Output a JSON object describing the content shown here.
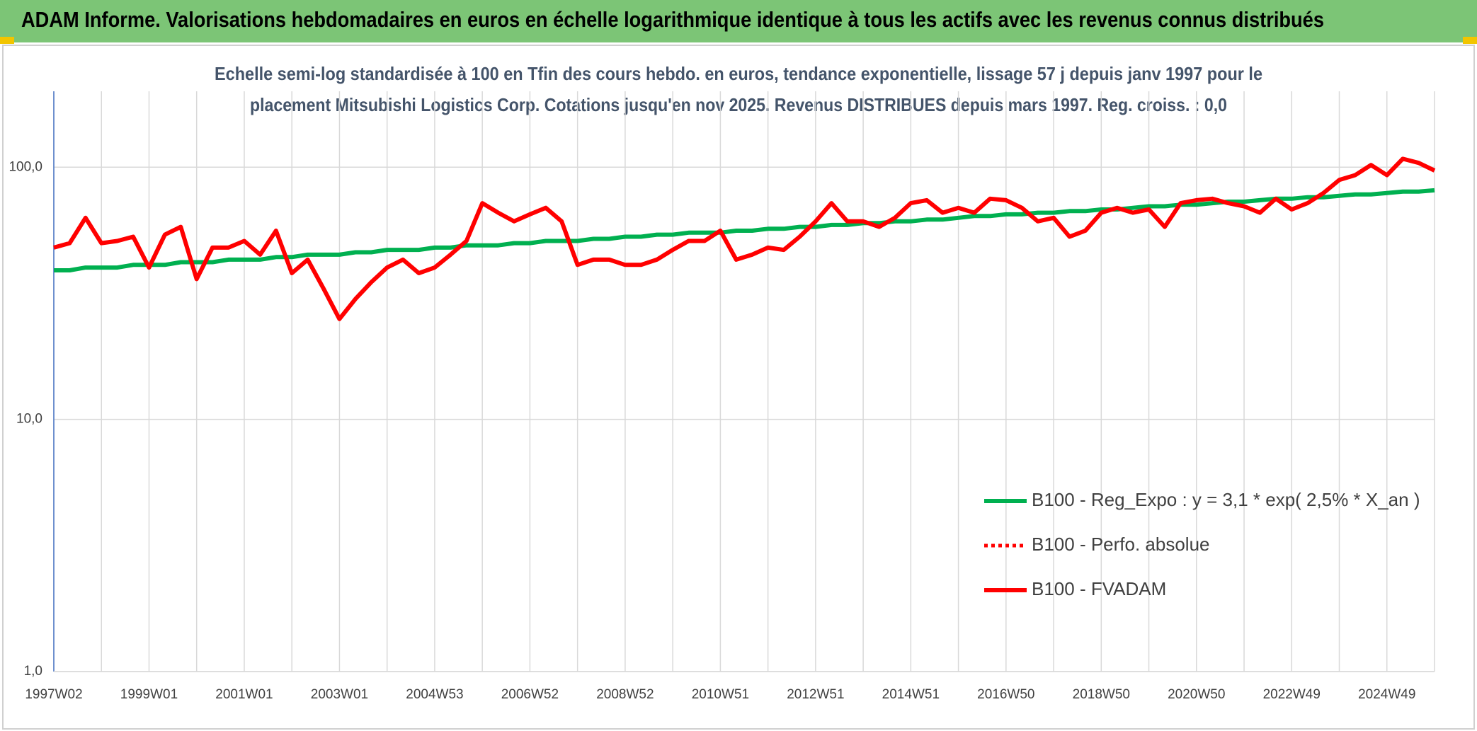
{
  "header": {
    "title": "ADAM Informe. Valorisations hebdomadaires en euros en échelle logarithmique identique à tous les actifs avec les revenus connus distribués"
  },
  "chart_data": {
    "type": "line",
    "title": [
      "Echelle semi-log standardisée à 100 en Tfin des cours hebdo. en euros, tendance exponentielle, lissage 57 j depuis janv 1997 pour le",
      "placement Mitsubishi Logistics Corp. Cotations jusqu'en nov 2025. Revenus DISTRIBUES depuis mars 1997. Reg. croiss. : 0,0"
    ],
    "categories": [
      "1997W02",
      null,
      null,
      null,
      null,
      null,
      "1999W01",
      null,
      null,
      null,
      null,
      null,
      "2001W01",
      null,
      null,
      null,
      null,
      null,
      "2003W01",
      null,
      null,
      null,
      null,
      null,
      "2004W53",
      null,
      null,
      null,
      null,
      null,
      "2006W52",
      null,
      null,
      null,
      null,
      null,
      "2008W52",
      null,
      null,
      null,
      null,
      null,
      "2010W51",
      null,
      null,
      null,
      null,
      null,
      "2012W51",
      null,
      null,
      null,
      null,
      null,
      "2014W51",
      null,
      null,
      null,
      null,
      null,
      "2016W50",
      null,
      null,
      null,
      null,
      null,
      "2018W50",
      null,
      null,
      null,
      null,
      null,
      "2020W50",
      null,
      null,
      null,
      null,
      null,
      "2022W49",
      null,
      null,
      null,
      null,
      null,
      "2024W49",
      null,
      null,
      null
    ],
    "series": [
      {
        "name": "B100 - Reg_Expo : y = 3,1 * exp( 2,5% *  X_an )",
        "color": "#00b050",
        "style": "solid",
        "values": [
          39,
          39,
          40,
          40,
          40,
          41,
          41,
          41,
          42,
          42,
          42,
          43,
          43,
          43,
          44,
          44,
          45,
          45,
          45,
          46,
          46,
          47,
          47,
          47,
          48,
          48,
          49,
          49,
          49,
          50,
          50,
          51,
          51,
          51,
          52,
          52,
          53,
          53,
          54,
          54,
          55,
          55,
          55,
          56,
          56,
          57,
          57,
          58,
          58,
          59,
          59,
          60,
          60,
          61,
          61,
          62,
          62,
          63,
          64,
          64,
          65,
          65,
          66,
          66,
          67,
          67,
          68,
          68,
          69,
          70,
          70,
          71,
          71,
          72,
          73,
          73,
          74,
          75,
          75,
          76,
          76,
          77,
          78,
          78,
          79,
          80,
          80,
          81
        ]
      },
      {
        "name": "B100 - Perfo. absolue",
        "color": "#ff0000",
        "style": "dotted",
        "values": [
          48,
          50,
          63,
          50,
          51,
          53,
          40,
          54,
          58,
          36,
          48,
          48,
          51,
          45,
          56,
          38,
          43,
          33,
          25,
          30,
          35,
          40,
          43,
          38,
          40,
          45,
          51,
          72,
          66,
          61,
          65,
          69,
          61,
          41,
          43,
          43,
          41,
          41,
          43,
          47,
          51,
          51,
          56,
          43,
          45,
          48,
          47,
          53,
          61,
          72,
          61,
          61,
          58,
          63,
          72,
          74,
          66,
          69,
          66,
          75,
          74,
          69,
          61,
          63,
          53,
          56,
          66,
          69,
          66,
          68,
          58,
          72,
          74,
          75,
          72,
          70,
          66,
          75,
          68,
          72,
          79,
          89,
          93,
          102,
          93,
          108,
          104,
          97
        ]
      },
      {
        "name": "B100 - FVADAM",
        "color": "#ff0000",
        "style": "solid",
        "values": [
          48,
          50,
          63,
          50,
          51,
          53,
          40,
          54,
          58,
          36,
          48,
          48,
          51,
          45,
          56,
          38,
          43,
          33,
          25,
          30,
          35,
          40,
          43,
          38,
          40,
          45,
          51,
          72,
          66,
          61,
          65,
          69,
          61,
          41,
          43,
          43,
          41,
          41,
          43,
          47,
          51,
          51,
          56,
          43,
          45,
          48,
          47,
          53,
          61,
          72,
          61,
          61,
          58,
          63,
          72,
          74,
          66,
          69,
          66,
          75,
          74,
          69,
          61,
          63,
          53,
          56,
          66,
          69,
          66,
          68,
          58,
          72,
          74,
          75,
          72,
          70,
          66,
          75,
          68,
          72,
          79,
          89,
          93,
          102,
          93,
          108,
          104,
          97
        ]
      }
    ],
    "ylim": [
      1,
      200
    ],
    "log": true,
    "yticks": [
      {
        "value": 1,
        "label": "1,0"
      },
      {
        "value": 10,
        "label": "10,0"
      },
      {
        "value": 100,
        "label": "100,0"
      }
    ],
    "grid": true
  }
}
